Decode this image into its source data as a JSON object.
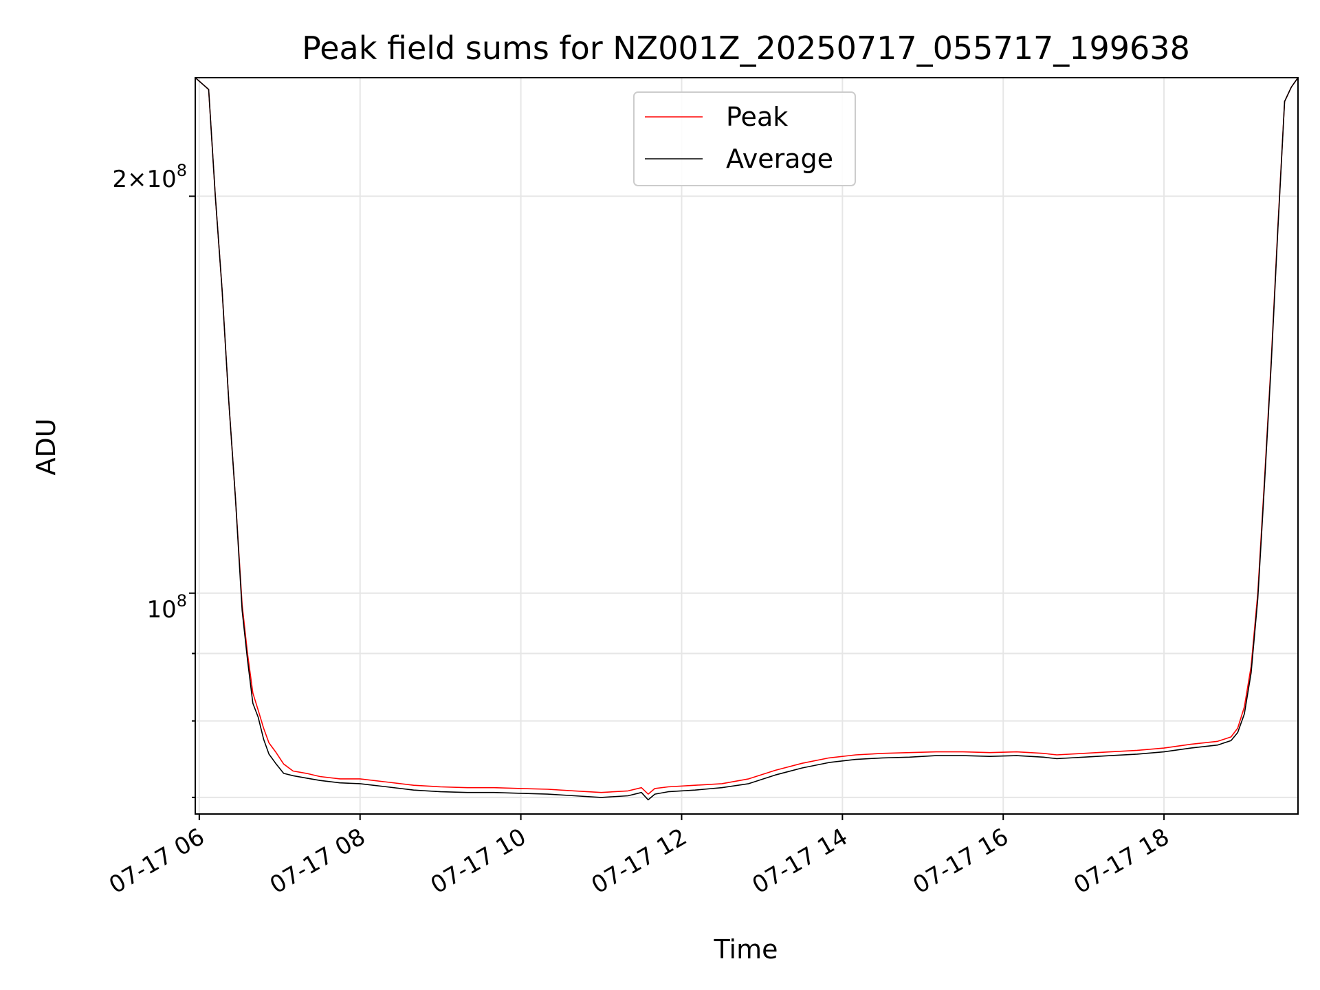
{
  "chart_data": {
    "type": "line",
    "title": "Peak field sums for NZ001Z_20250717_055717_199638",
    "xlabel": "Time",
    "ylabel": "ADU",
    "x_ticks": [
      "07-17 06",
      "07-17 08",
      "07-17 10",
      "07-17 12",
      "07-17 14",
      "07-17 16",
      "07-17 18"
    ],
    "y_tick_labels": {
      "major_2e8": {
        "base": "2",
        "times": "×",
        "ten": "10",
        "exp": "8"
      },
      "major_1e8": {
        "ten": "10",
        "exp": "8"
      }
    },
    "y_scale": "log",
    "xlim": [
      "2025-07-17 05:57",
      "2025-07-17 19:40"
    ],
    "ylim": [
      68000000,
      246000000
    ],
    "grid": true,
    "legend_position": "upper center",
    "series": [
      {
        "name": "Peak",
        "color": "#ff0000",
        "x": [
          "2025-07-17 05:57",
          "2025-07-17 06:07",
          "2025-07-17 06:12",
          "2025-07-17 06:17",
          "2025-07-17 06:22",
          "2025-07-17 06:27",
          "2025-07-17 06:32",
          "2025-07-17 06:36",
          "2025-07-17 06:40",
          "2025-07-17 06:44",
          "2025-07-17 06:48",
          "2025-07-17 06:52",
          "2025-07-17 06:57",
          "2025-07-17 07:03",
          "2025-07-17 07:10",
          "2025-07-17 07:20",
          "2025-07-17 07:30",
          "2025-07-17 07:45",
          "2025-07-17 08:00",
          "2025-07-17 08:20",
          "2025-07-17 08:40",
          "2025-07-17 09:00",
          "2025-07-17 09:20",
          "2025-07-17 09:40",
          "2025-07-17 10:00",
          "2025-07-17 10:20",
          "2025-07-17 10:40",
          "2025-07-17 11:00",
          "2025-07-17 11:20",
          "2025-07-17 11:30",
          "2025-07-17 11:35",
          "2025-07-17 11:40",
          "2025-07-17 11:50",
          "2025-07-17 12:10",
          "2025-07-17 12:30",
          "2025-07-17 12:50",
          "2025-07-17 13:10",
          "2025-07-17 13:30",
          "2025-07-17 13:50",
          "2025-07-17 14:10",
          "2025-07-17 14:30",
          "2025-07-17 14:50",
          "2025-07-17 15:10",
          "2025-07-17 15:30",
          "2025-07-17 15:50",
          "2025-07-17 16:10",
          "2025-07-17 16:30",
          "2025-07-17 16:40",
          "2025-07-17 17:00",
          "2025-07-17 17:20",
          "2025-07-17 17:40",
          "2025-07-17 18:00",
          "2025-07-17 18:20",
          "2025-07-17 18:40",
          "2025-07-17 18:50",
          "2025-07-17 18:55",
          "2025-07-17 19:00",
          "2025-07-17 19:05",
          "2025-07-17 19:10",
          "2025-07-17 19:15",
          "2025-07-17 19:20",
          "2025-07-17 19:25",
          "2025-07-17 19:30",
          "2025-07-17 19:35",
          "2025-07-17 19:40"
        ],
        "y": [
          246000000,
          241000000,
          200000000,
          170000000,
          140000000,
          118000000,
          98000000,
          90000000,
          84000000,
          81500000,
          79000000,
          77000000,
          75800000,
          74200000,
          73300000,
          73000000,
          72600000,
          72300000,
          72300000,
          71900000,
          71500000,
          71300000,
          71200000,
          71200000,
          71100000,
          71000000,
          70800000,
          70600000,
          70800000,
          71200000,
          70400000,
          71100000,
          71300000,
          71500000,
          71700000,
          72300000,
          73400000,
          74300000,
          75000000,
          75400000,
          75600000,
          75700000,
          75800000,
          75800000,
          75700000,
          75800000,
          75600000,
          75400000,
          75600000,
          75800000,
          76000000,
          76300000,
          76800000,
          77200000,
          77800000,
          79000000,
          82000000,
          88000000,
          100000000,
          122000000,
          150000000,
          190000000,
          236000000,
          242000000,
          246000000
        ]
      },
      {
        "name": "Average",
        "color": "#000000",
        "x": [
          "2025-07-17 05:57",
          "2025-07-17 06:07",
          "2025-07-17 06:12",
          "2025-07-17 06:17",
          "2025-07-17 06:22",
          "2025-07-17 06:27",
          "2025-07-17 06:32",
          "2025-07-17 06:36",
          "2025-07-17 06:40",
          "2025-07-17 06:44",
          "2025-07-17 06:48",
          "2025-07-17 06:52",
          "2025-07-17 06:57",
          "2025-07-17 07:03",
          "2025-07-17 07:10",
          "2025-07-17 07:20",
          "2025-07-17 07:30",
          "2025-07-17 07:45",
          "2025-07-17 08:00",
          "2025-07-17 08:20",
          "2025-07-17 08:40",
          "2025-07-17 09:00",
          "2025-07-17 09:20",
          "2025-07-17 09:40",
          "2025-07-17 10:00",
          "2025-07-17 10:20",
          "2025-07-17 10:40",
          "2025-07-17 11:00",
          "2025-07-17 11:20",
          "2025-07-17 11:30",
          "2025-07-17 11:35",
          "2025-07-17 11:40",
          "2025-07-17 11:50",
          "2025-07-17 12:10",
          "2025-07-17 12:30",
          "2025-07-17 12:50",
          "2025-07-17 13:10",
          "2025-07-17 13:30",
          "2025-07-17 13:50",
          "2025-07-17 14:10",
          "2025-07-17 14:30",
          "2025-07-17 14:50",
          "2025-07-17 15:10",
          "2025-07-17 15:30",
          "2025-07-17 15:50",
          "2025-07-17 16:10",
          "2025-07-17 16:30",
          "2025-07-17 16:40",
          "2025-07-17 17:00",
          "2025-07-17 17:20",
          "2025-07-17 17:40",
          "2025-07-17 18:00",
          "2025-07-17 18:20",
          "2025-07-17 18:40",
          "2025-07-17 18:50",
          "2025-07-17 18:55",
          "2025-07-17 19:00",
          "2025-07-17 19:05",
          "2025-07-17 19:10",
          "2025-07-17 19:15",
          "2025-07-17 19:20",
          "2025-07-17 19:25",
          "2025-07-17 19:30",
          "2025-07-17 19:35",
          "2025-07-17 19:40"
        ],
        "y": [
          246000000,
          241000000,
          200000000,
          170000000,
          140000000,
          118000000,
          97000000,
          89000000,
          82500000,
          80500000,
          77500000,
          75500000,
          74300000,
          73000000,
          72700000,
          72400000,
          72100000,
          71800000,
          71700000,
          71300000,
          70900000,
          70700000,
          70600000,
          70600000,
          70500000,
          70400000,
          70200000,
          70000000,
          70200000,
          70600000,
          69700000,
          70400000,
          70700000,
          70900000,
          71200000,
          71700000,
          72800000,
          73700000,
          74400000,
          74800000,
          75000000,
          75100000,
          75300000,
          75300000,
          75200000,
          75300000,
          75100000,
          74900000,
          75100000,
          75300000,
          75500000,
          75800000,
          76300000,
          76700000,
          77300000,
          78400000,
          81000000,
          87000000,
          99000000,
          121000000,
          149000000,
          189000000,
          236000000,
          242000000,
          246000000
        ]
      }
    ]
  }
}
